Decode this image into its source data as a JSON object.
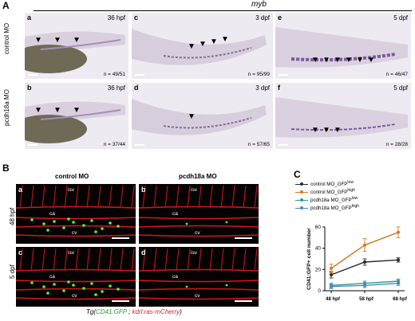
{
  "panel_A": {
    "letter": "A",
    "gene": "myb",
    "rows": [
      "control MO",
      "pcdh18a MO"
    ],
    "panels": [
      {
        "letter": "a",
        "stage": "36 hpf",
        "n": "n = 49/51",
        "arrows": 3
      },
      {
        "letter": "c",
        "stage": "3 dpf",
        "n": "n = 95/99",
        "arrows": 4
      },
      {
        "letter": "e",
        "stage": "5 dpf",
        "n": "n = 46/47",
        "arrows": 6
      },
      {
        "letter": "b",
        "stage": "36 hpf",
        "n": "n = 37/44",
        "arrows": 3
      },
      {
        "letter": "d",
        "stage": "3 dpf",
        "n": "n = 57/65",
        "arrows": 1
      },
      {
        "letter": "f",
        "stage": "5 dpf",
        "n": "n = 28/28",
        "arrows": 3
      }
    ]
  },
  "panel_B": {
    "letter": "B",
    "columns": [
      "control MO",
      "pcdh18a MO"
    ],
    "rows": [
      "48 hpf",
      "5 dpf"
    ],
    "panels": [
      {
        "letter": "a",
        "isv": "isv",
        "ca": "ca",
        "cv": "cv"
      },
      {
        "letter": "b",
        "isv": "isv",
        "ca": "ca",
        "cv": "cv"
      },
      {
        "letter": "c",
        "isv": "isv",
        "ca": "ca",
        "cv": "cv"
      },
      {
        "letter": "d",
        "isv": "isv",
        "ca": "ca",
        "cv": "cv"
      }
    ],
    "caption_prefix": "Tg(",
    "caption_gfp": "CD41:GFP",
    "caption_sep": " ; ",
    "caption_cherry": "kdrl:ras-mCherry",
    "caption_suffix": ")"
  },
  "panel_C": {
    "letter": "C"
  },
  "chart_data": {
    "type": "line",
    "ylabel": "CD41:GFP+ cell number",
    "categories": [
      "48 hpf",
      "58 hpf",
      "68 hpf"
    ],
    "ylim": [
      0,
      60
    ],
    "yticks": [
      0,
      20,
      40,
      60
    ],
    "series": [
      {
        "name": "control MO_GFP",
        "sup": "low",
        "color": "#2a2a2a",
        "values": [
          15,
          27,
          29
        ],
        "errors": [
          3,
          3,
          2
        ]
      },
      {
        "name": "control MO_GFP",
        "sup": "high",
        "color": "#d07a24",
        "values": [
          21,
          43,
          55
        ],
        "errors": [
          4,
          6,
          5
        ]
      },
      {
        "name": "pcdh18a MO_GFP",
        "sup": "low",
        "color": "#2e9a86",
        "values": [
          5,
          7,
          9
        ],
        "errors": [
          2,
          2,
          2
        ]
      },
      {
        "name": "pcdh18a MO_GFP",
        "sup": "high",
        "color": "#4a86c6",
        "values": [
          4,
          5,
          7
        ],
        "errors": [
          2,
          2,
          2
        ]
      }
    ]
  }
}
